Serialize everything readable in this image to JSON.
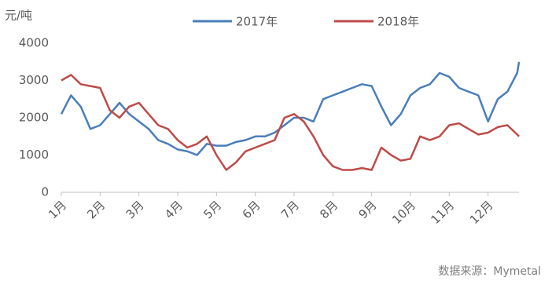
{
  "chart_data": {
    "type": "line",
    "y_label": "元/吨",
    "source": "数据来源：Mymetal",
    "x": [
      1,
      1.25,
      1.5,
      1.75,
      2,
      2.25,
      2.5,
      2.75,
      3,
      3.25,
      3.5,
      3.75,
      4,
      4.25,
      4.5,
      4.75,
      5,
      5.25,
      5.5,
      5.75,
      6,
      6.25,
      6.5,
      6.75,
      7,
      7.25,
      7.5,
      7.75,
      8,
      8.25,
      8.5,
      8.75,
      9,
      9.25,
      9.5,
      9.75,
      10,
      10.25,
      10.5,
      10.75,
      11,
      11.25,
      11.5,
      11.75,
      12,
      12.25,
      12.5,
      12.75,
      12.8
    ],
    "series": [
      {
        "name": "2017年",
        "color": "#4a7ebb",
        "values": [
          2100,
          2600,
          2300,
          1700,
          1800,
          2100,
          2400,
          2100,
          1900,
          1700,
          1400,
          1300,
          1150,
          1100,
          1000,
          1300,
          1250,
          1250,
          1350,
          1400,
          1500,
          1500,
          1600,
          1800,
          2000,
          2000,
          1900,
          2500,
          2600,
          2700,
          2800,
          2900,
          2850,
          2300,
          1800,
          2100,
          2600,
          2800,
          2900,
          3200,
          3100,
          2800,
          2700,
          2600,
          1900,
          2500,
          2700,
          3200,
          3500
        ]
      },
      {
        "name": "2018年",
        "color": "#be4b48",
        "values": [
          3000,
          3150,
          2900,
          2850,
          2800,
          2200,
          2000,
          2300,
          2400,
          2100,
          1800,
          1700,
          1400,
          1200,
          1300,
          1500,
          1000,
          600,
          800,
          1100,
          1200,
          1300,
          1400,
          2000,
          2100,
          1900,
          1500,
          1000,
          700,
          600,
          600,
          650,
          600,
          1200,
          1000,
          850,
          900,
          1500,
          1400,
          1500,
          1800,
          1850,
          1700,
          1550,
          1600,
          1750,
          1800,
          1550,
          1500
        ]
      }
    ],
    "xlim": [
      1,
      13
    ],
    "xticks": [
      {
        "value": 1,
        "label": "1月"
      },
      {
        "value": 2,
        "label": "2月"
      },
      {
        "value": 3,
        "label": "3月"
      },
      {
        "value": 4,
        "label": "4月"
      },
      {
        "value": 5,
        "label": "5月"
      },
      {
        "value": 6,
        "label": "6月"
      },
      {
        "value": 7,
        "label": "7月"
      },
      {
        "value": 8,
        "label": "8月"
      },
      {
        "value": 9,
        "label": "9月"
      },
      {
        "value": 10,
        "label": "10月"
      },
      {
        "value": 11,
        "label": "11月"
      },
      {
        "value": 12,
        "label": "12月"
      }
    ],
    "ylim": [
      0,
      4000
    ],
    "yticks": [
      0,
      1000,
      2000,
      3000,
      4000
    ],
    "grid": false,
    "legend": "top"
  }
}
